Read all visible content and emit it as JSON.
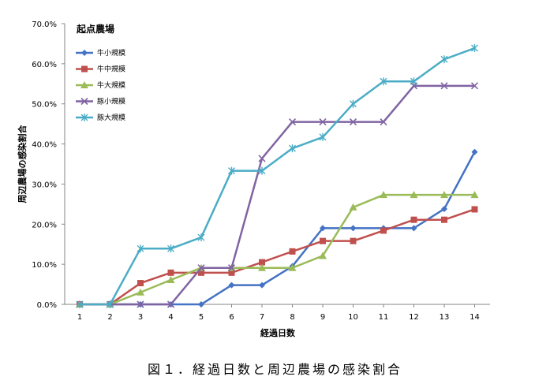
{
  "chart_data": {
    "type": "line",
    "title": "",
    "legend_title": "起点農場",
    "xlabel": "経過日数",
    "ylabel": "周辺農場の感染割合",
    "x": [
      1,
      2,
      3,
      4,
      5,
      6,
      7,
      8,
      9,
      10,
      11,
      12,
      13,
      14
    ],
    "ylim": [
      0,
      70
    ],
    "y_ticks": [
      0,
      10,
      20,
      30,
      40,
      50,
      60,
      70
    ],
    "y_tick_labels": [
      "0.0%",
      "10.0%",
      "20.0%",
      "30.0%",
      "40.0%",
      "50.0%",
      "60.0%",
      "70.0%"
    ],
    "grid": false,
    "legend_position": "top-left",
    "series": [
      {
        "name": "牛小規模",
        "color": "#4472C4",
        "marker": "diamond",
        "values": [
          0,
          0,
          0,
          0,
          0,
          4.8,
          4.8,
          9.5,
          19,
          19,
          19,
          19,
          23.8,
          38
        ]
      },
      {
        "name": "牛中規模",
        "color": "#C0504D",
        "marker": "square",
        "values": [
          0,
          0,
          5.3,
          7.9,
          7.9,
          7.9,
          10.5,
          13.2,
          15.8,
          15.8,
          18.4,
          21.1,
          21.1,
          23.7
        ]
      },
      {
        "name": "牛大規模",
        "color": "#9BBB59",
        "marker": "triangle",
        "values": [
          0,
          0,
          3,
          6.1,
          9.1,
          9.1,
          9.1,
          9.1,
          12.1,
          24.2,
          27.3,
          27.3,
          27.3,
          27.3
        ]
      },
      {
        "name": "豚小規模",
        "color": "#8064A2",
        "marker": "x",
        "values": [
          0,
          0,
          0,
          0,
          9.1,
          9.1,
          36.4,
          45.5,
          45.5,
          45.5,
          45.5,
          54.5,
          54.5,
          54.5
        ]
      },
      {
        "name": "豚大規模",
        "color": "#4BACC6",
        "marker": "star",
        "values": [
          0,
          0,
          13.9,
          13.9,
          16.7,
          33.3,
          33.3,
          38.9,
          41.7,
          50,
          55.6,
          55.6,
          61.1,
          63.9
        ]
      }
    ]
  },
  "caption": "図１．経過日数と周辺農場の感染割合"
}
